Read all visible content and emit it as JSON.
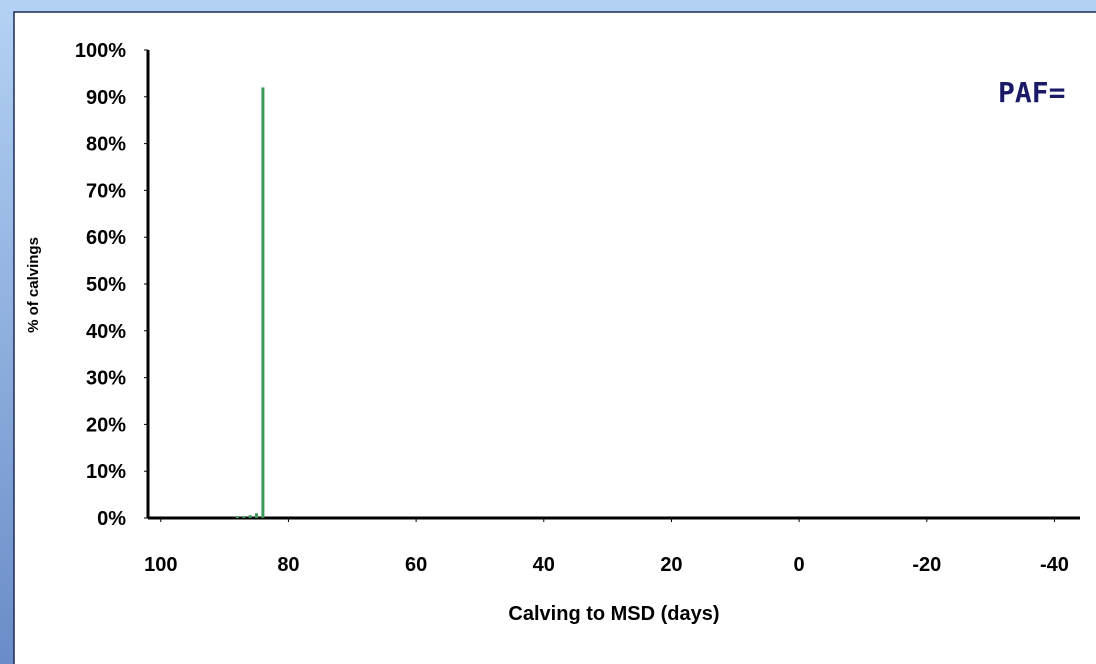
{
  "chart_data": {
    "type": "bar",
    "annotation": "PAF=",
    "x_label": "Calving to MSD (days)",
    "y_label": "% of calvings",
    "x": [
      88,
      87,
      86,
      85,
      84
    ],
    "values": [
      0.4,
      0.4,
      0.6,
      1,
      92
    ],
    "color": "#3a9a5a",
    "xlim": [
      102,
      -44
    ],
    "xticks": [
      100,
      80,
      60,
      40,
      20,
      0,
      -20,
      -40
    ],
    "ylim": [
      0,
      100
    ],
    "yticks": [
      {
        "value": 0,
        "label": "0%"
      },
      {
        "value": 10,
        "label": "10%"
      },
      {
        "value": 20,
        "label": "20%"
      },
      {
        "value": 30,
        "label": "30%"
      },
      {
        "value": 40,
        "label": "40%"
      },
      {
        "value": 50,
        "label": "50%"
      },
      {
        "value": 60,
        "label": "60%"
      },
      {
        "value": 70,
        "label": "70%"
      },
      {
        "value": 80,
        "label": "80%"
      },
      {
        "value": 90,
        "label": "90%"
      },
      {
        "value": 100,
        "label": "100%"
      }
    ],
    "grid": false
  }
}
